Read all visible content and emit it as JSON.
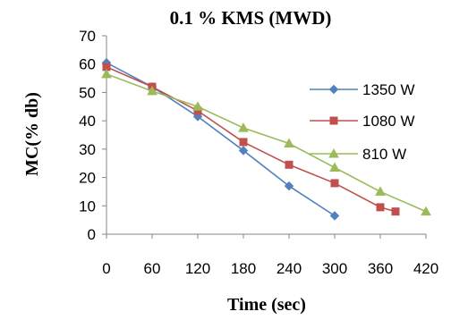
{
  "chart_data": {
    "type": "line",
    "title": "0.1 % KMS (MWD)",
    "xlabel": "Time (sec)",
    "ylabel": "MC(% db)",
    "xlim": [
      0,
      420
    ],
    "ylim": [
      0,
      70
    ],
    "xticks": [
      0,
      60,
      120,
      180,
      240,
      300,
      360,
      420
    ],
    "yticks": [
      0,
      10,
      20,
      30,
      40,
      50,
      60,
      70
    ],
    "grid": false,
    "legend": "right",
    "series": [
      {
        "name": "1350 W",
        "color": "#4f81bd",
        "marker": "diamond",
        "points": [
          [
            0,
            60.5
          ],
          [
            60,
            52
          ],
          [
            120,
            41.5
          ],
          [
            180,
            29.5
          ],
          [
            240,
            17
          ],
          [
            300,
            6.5
          ]
        ]
      },
      {
        "name": "1080 W",
        "color": "#c0504d",
        "marker": "square",
        "points": [
          [
            0,
            59
          ],
          [
            60,
            52
          ],
          [
            120,
            43.5
          ],
          [
            180,
            32.5
          ],
          [
            240,
            24.5
          ],
          [
            300,
            18
          ],
          [
            360,
            9.5
          ],
          [
            380,
            8
          ]
        ]
      },
      {
        "name": "810 W",
        "color": "#9bbb59",
        "marker": "triangle",
        "points": [
          [
            0,
            56.5
          ],
          [
            60,
            50.5
          ],
          [
            120,
            45
          ],
          [
            180,
            37.5
          ],
          [
            240,
            32
          ],
          [
            300,
            23.5
          ],
          [
            360,
            15
          ],
          [
            420,
            8
          ]
        ]
      }
    ]
  }
}
